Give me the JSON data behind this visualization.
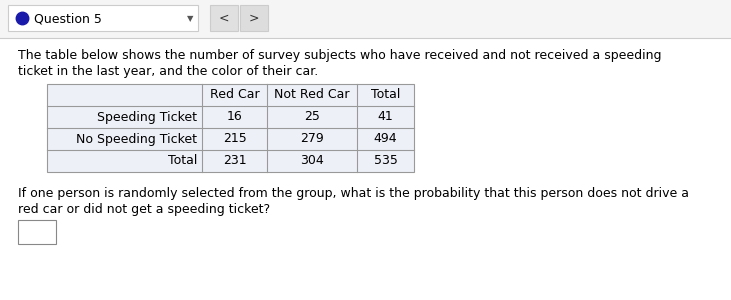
{
  "header_nav": "Question 5",
  "description_line1": "The table below shows the number of survey subjects who have received and not received a speeding",
  "description_line2": "ticket in the last year, and the color of their car.",
  "col_headers": [
    "",
    "Red Car",
    "Not Red Car",
    "Total"
  ],
  "rows": [
    [
      "Speeding Ticket",
      "16",
      "25",
      "41"
    ],
    [
      "No Speeding Ticket",
      "215",
      "279",
      "494"
    ],
    [
      "Total",
      "231",
      "304",
      "535"
    ]
  ],
  "question_line1": "If one person is randomly selected from the group, what is the probability that this person does not drive a",
  "question_line2": "red car or did not get a speeding ticket?",
  "bg_color": "#ffffff",
  "nav_bg": "#f5f5f5",
  "table_border_color": "#999999",
  "table_fill_color": "#eef0f8",
  "font_size_nav": 9,
  "font_size_text": 9,
  "font_size_table": 9,
  "dot_color": "#1a1aaa",
  "nav_box_color": "#ffffff",
  "nav_box_edge": "#cccccc",
  "nav_arrow_bg": "#e0e0e0"
}
